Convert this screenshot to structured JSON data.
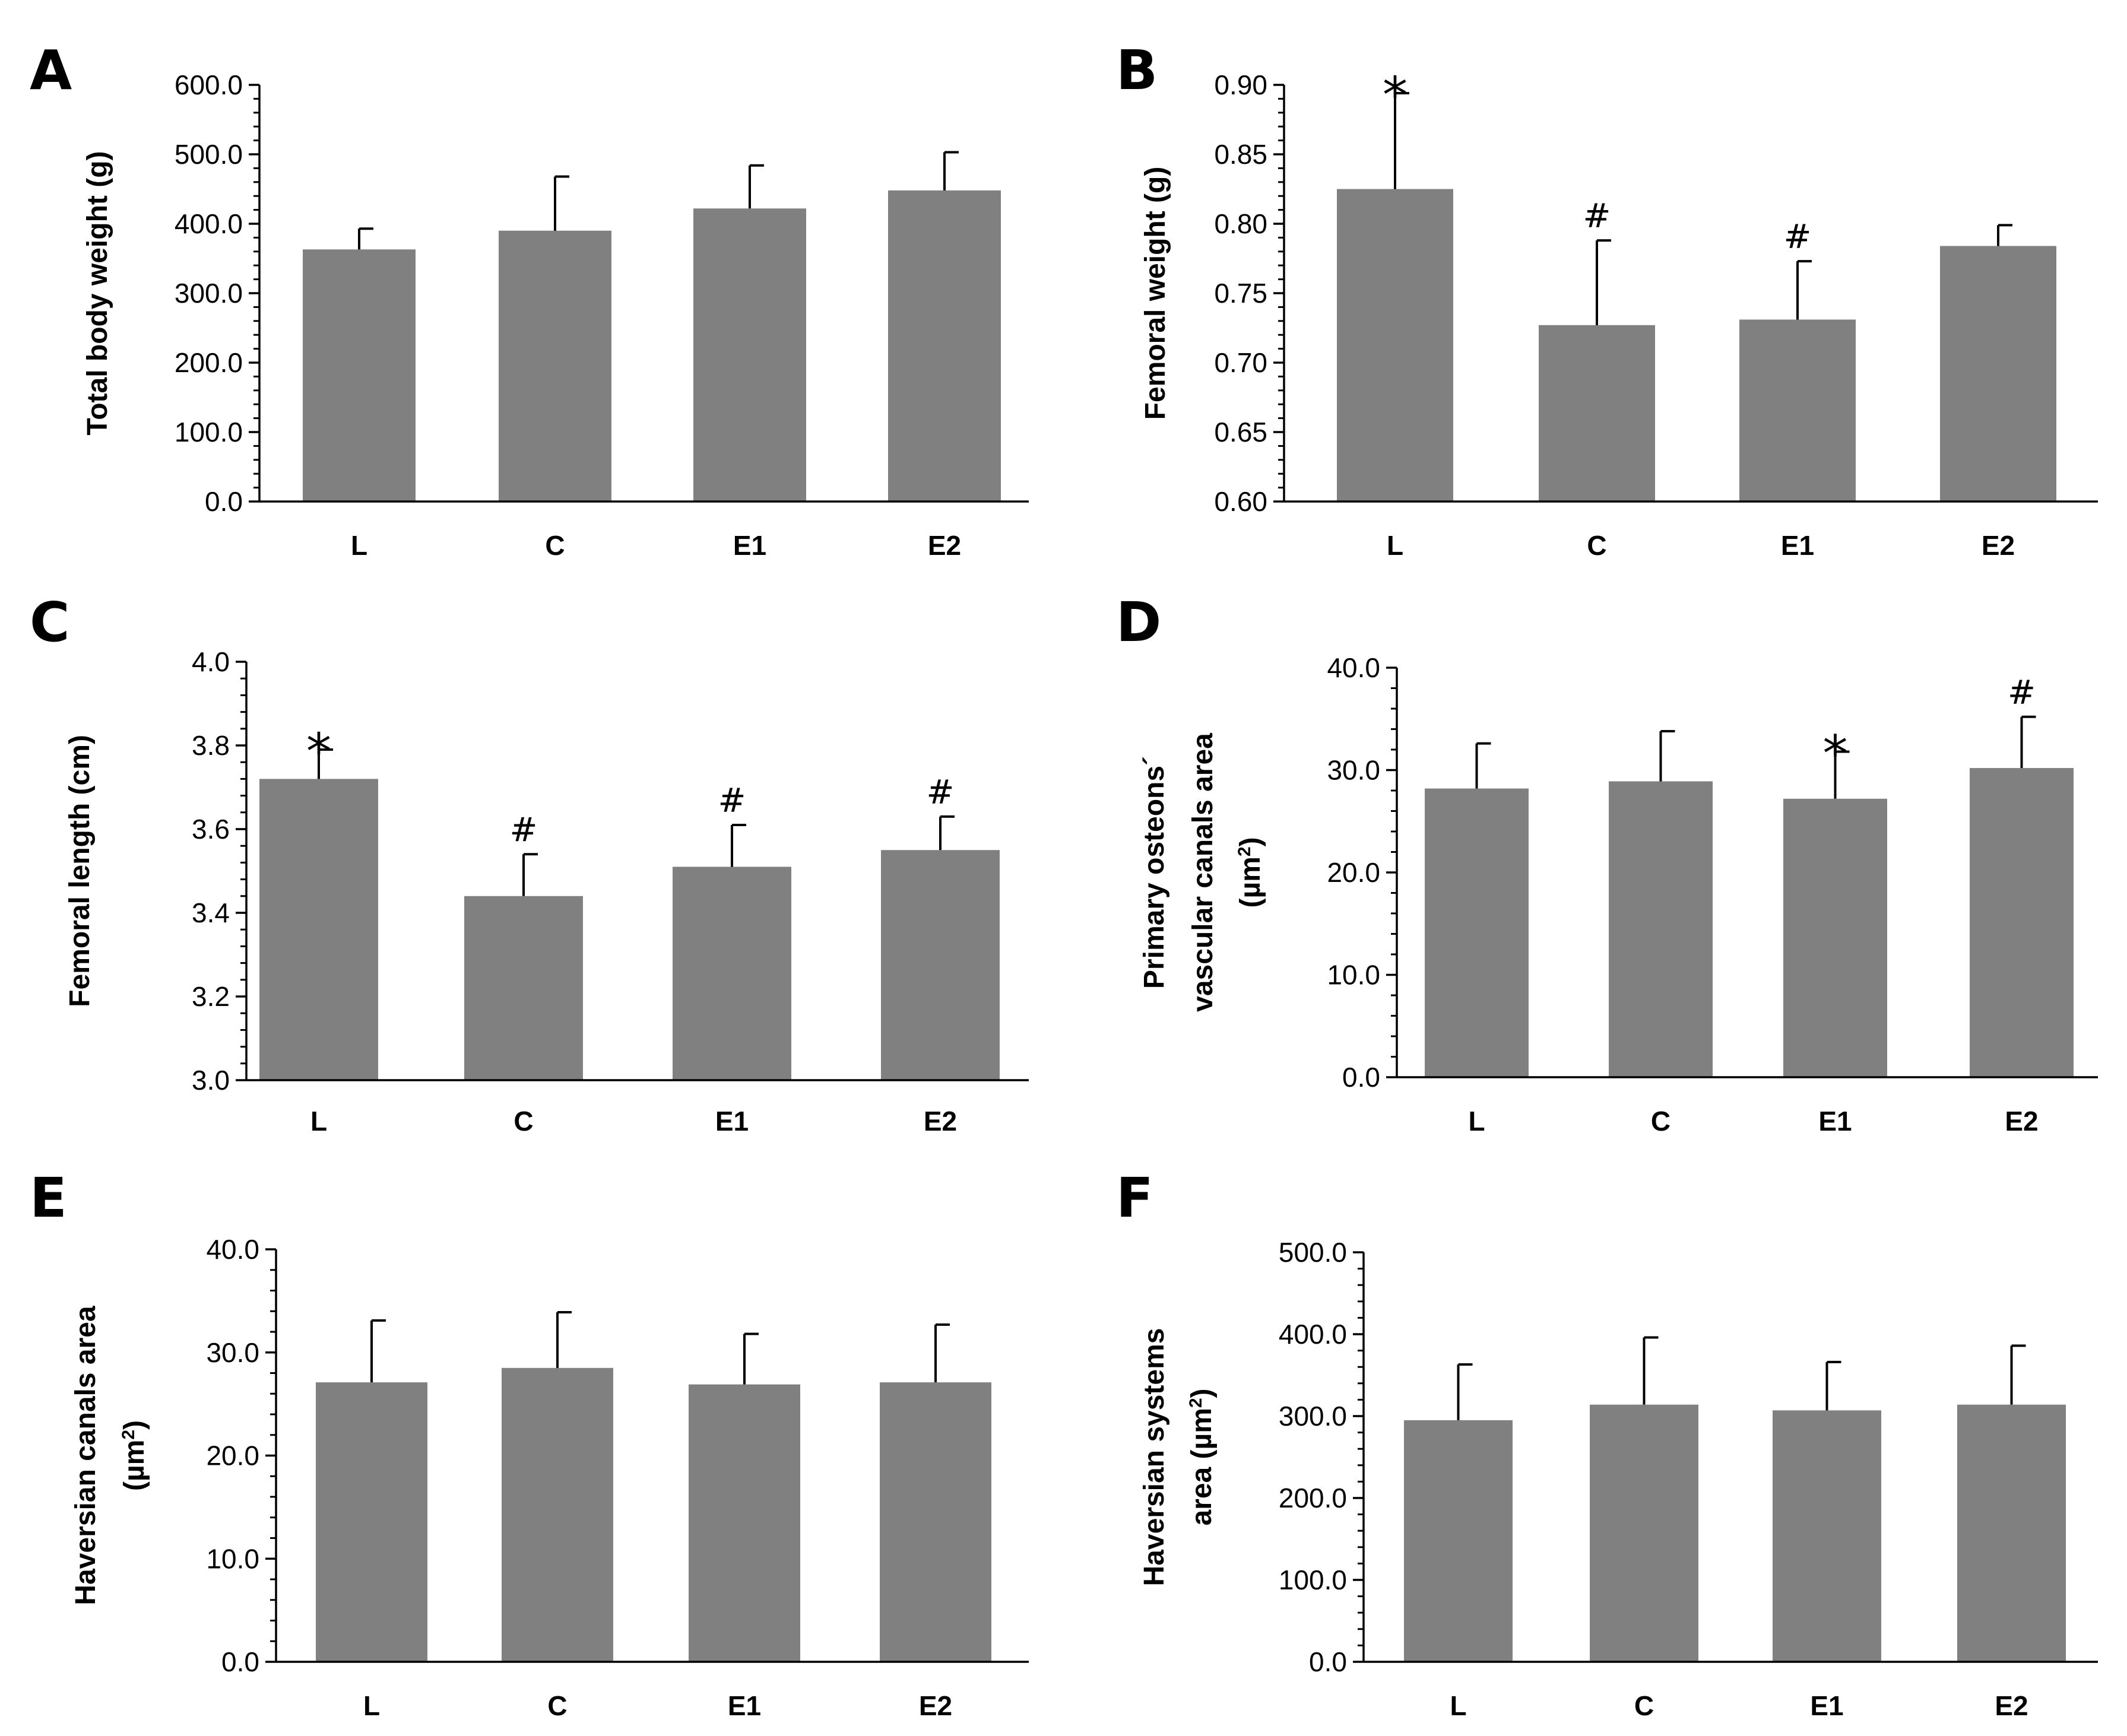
{
  "bar_color": "#808080",
  "chart_data": [
    {
      "panel": "A",
      "type": "bar",
      "categories": [
        "L",
        "C",
        "E1",
        "E2"
      ],
      "values": [
        363,
        390,
        422,
        448
      ],
      "errors": [
        30,
        78,
        62,
        55
      ],
      "significance": [
        "",
        "",
        "",
        ""
      ],
      "ylabel_lines": [
        "Total body weight (g)"
      ],
      "ylim": [
        0,
        600
      ],
      "yticks": [
        0,
        100,
        200,
        300,
        400,
        500,
        600
      ],
      "ytick_labels": [
        "0.0",
        "100.0",
        "200.0",
        "300.0",
        "400.0",
        "500.0",
        "600.0"
      ]
    },
    {
      "panel": "B",
      "type": "bar",
      "categories": [
        "L",
        "C",
        "E1",
        "E2"
      ],
      "values": [
        0.825,
        0.727,
        0.731,
        0.784
      ],
      "errors": [
        0.069,
        0.061,
        0.042,
        0.015
      ],
      "significance": [
        "*",
        "#",
        "#",
        ""
      ],
      "ylabel_lines": [
        "Femoral weight (g)"
      ],
      "ylim": [
        0.6,
        0.9
      ],
      "yticks": [
        0.6,
        0.65,
        0.7,
        0.75,
        0.8,
        0.85,
        0.9
      ],
      "ytick_labels": [
        "0.60",
        "0.65",
        "0.70",
        "0.75",
        "0.80",
        "0.85",
        "0.90"
      ]
    },
    {
      "panel": "C",
      "type": "bar",
      "categories": [
        "L",
        "C",
        "E1",
        "E2"
      ],
      "values": [
        3.72,
        3.44,
        3.51,
        3.55
      ],
      "errors": [
        0.07,
        0.1,
        0.1,
        0.08
      ],
      "significance": [
        "*",
        "#",
        "#",
        "#"
      ],
      "ylabel_lines": [
        "Femoral length (cm)"
      ],
      "ylim": [
        3.0,
        4.0
      ],
      "yticks": [
        3.0,
        3.2,
        3.4,
        3.6,
        3.8,
        4.0
      ],
      "ytick_labels": [
        "3.0",
        "3.2",
        "3.4",
        "3.6",
        "3.8",
        "4.0"
      ]
    },
    {
      "panel": "D",
      "type": "bar",
      "categories": [
        "L",
        "C",
        "E1",
        "E2"
      ],
      "values": [
        28.2,
        28.9,
        27.2,
        30.2
      ],
      "errors": [
        4.4,
        4.9,
        4.6,
        5.0
      ],
      "significance": [
        "",
        "",
        "*",
        "#"
      ],
      "ylabel_lines": [
        "Primary osteons´",
        "vascular canals  area",
        "(µm²)"
      ],
      "ylim": [
        0,
        40
      ],
      "yticks": [
        0,
        10,
        20,
        30,
        40
      ],
      "ytick_labels": [
        "0.0",
        "10.0",
        "20.0",
        "30.0",
        "40.0"
      ]
    },
    {
      "panel": "E",
      "type": "bar",
      "categories": [
        "L",
        "C",
        "E1",
        "E2"
      ],
      "values": [
        27.1,
        28.5,
        26.9,
        27.1
      ],
      "errors": [
        6.0,
        5.4,
        4.9,
        5.6
      ],
      "significance": [
        "",
        "",
        "",
        ""
      ],
      "ylabel_lines": [
        "Haversian  canals  area",
        "(µm²)"
      ],
      "ylim": [
        0,
        40
      ],
      "yticks": [
        0,
        10,
        20,
        30,
        40
      ],
      "ytick_labels": [
        "0.0",
        "10.0",
        "20.0",
        "30.0",
        "40.0"
      ]
    },
    {
      "panel": "F",
      "type": "bar",
      "categories": [
        "L",
        "C",
        "E1",
        "E2"
      ],
      "values": [
        295,
        314,
        307,
        314
      ],
      "errors": [
        68,
        82,
        59,
        72
      ],
      "significance": [
        "",
        "",
        "",
        ""
      ],
      "ylabel_lines": [
        "Haversian systems",
        "area (µm²)"
      ],
      "ylim": [
        0,
        500
      ],
      "yticks": [
        0,
        100,
        200,
        300,
        400,
        500
      ],
      "ytick_labels": [
        "0.0",
        "100.0",
        "200.0",
        "300.0",
        "400.0",
        "500.0"
      ]
    }
  ]
}
